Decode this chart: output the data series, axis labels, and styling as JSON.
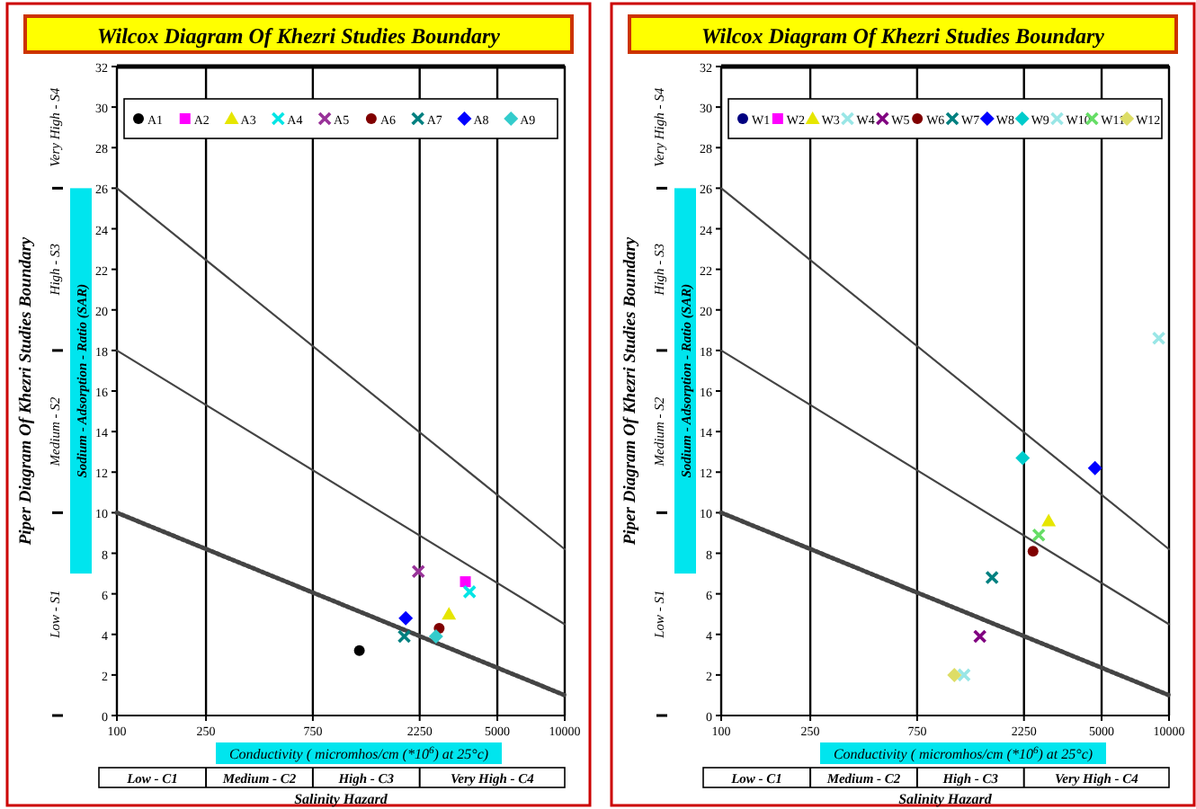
{
  "chart_data": [
    {
      "type": "scatter",
      "title": "Wilcox Diagram Of Khezri Studies Boundary",
      "xlabel": "Conductivity ( micromhos/cm (*10$^{6}$) at 25°c)",
      "ylabel": "Sodium - Adsorption - Ratio (SAR)",
      "log": "x",
      "xlim": [
        100,
        10000
      ],
      "xticks": [
        100,
        250,
        750,
        2250,
        5000,
        10000
      ],
      "ylim": [
        0,
        32
      ],
      "yticks": [
        0,
        2,
        4,
        6,
        8,
        10,
        12,
        14,
        16,
        18,
        20,
        22,
        24,
        26,
        28,
        30,
        32
      ],
      "grid": "x",
      "legend": "top",
      "annotations": [
        "Low - S1",
        "Medium - S2",
        "High - S3",
        "Very High - S4",
        "Low - C1",
        "Medium - C2",
        "High - C3",
        "Very High - C4",
        "Salinity Hazard",
        "Piper Diagram Of Khezri Studies Boundary"
      ],
      "series": [
        {
          "type": "line",
          "color": "#444444",
          "line_style": "solid",
          "x": [
            100,
            10000
          ],
          "values": [
            26,
            8.2
          ]
        },
        {
          "type": "line",
          "color": "#444444",
          "line_style": "solid",
          "x": [
            100,
            10000
          ],
          "values": [
            18,
            4.5
          ]
        },
        {
          "type": "line",
          "color": "#444444",
          "line_style": "dotted",
          "x": [
            100,
            10000
          ],
          "values": [
            10,
            1
          ]
        },
        {
          "name": "A1",
          "color": "#000000",
          "marker": "circle",
          "x": [
            1210
          ],
          "values": [
            3.2
          ]
        },
        {
          "name": "A2",
          "color": "#ff00ff",
          "marker": "square",
          "x": [
            3600
          ],
          "values": [
            6.6
          ]
        },
        {
          "name": "A3",
          "color": "#e6e600",
          "marker": "triangle",
          "x": [
            3040
          ],
          "values": [
            5
          ]
        },
        {
          "name": "A4",
          "color": "#00e5e5",
          "marker": "cross",
          "x": [
            3760
          ],
          "values": [
            6.1
          ]
        },
        {
          "name": "A5",
          "color": "#993399",
          "marker": "cross",
          "x": [
            2220
          ],
          "values": [
            7.1
          ]
        },
        {
          "name": "A6",
          "color": "#800000",
          "marker": "circle",
          "x": [
            2750
          ],
          "values": [
            4.3
          ]
        },
        {
          "name": "A7",
          "color": "#008080",
          "marker": "cross",
          "x": [
            1920
          ],
          "values": [
            3.9
          ]
        },
        {
          "name": "A8",
          "color": "#0000ff",
          "marker": "diamond",
          "x": [
            1950
          ],
          "values": [
            4.8
          ]
        },
        {
          "name": "A9",
          "color": "#33cccc",
          "marker": "diamond",
          "x": [
            2660
          ],
          "values": [
            3.9
          ]
        }
      ]
    },
    {
      "type": "scatter",
      "title": "Wilcox Diagram Of Khezri Studies Boundary",
      "xlabel": "Conductivity ( micromhos/cm (*10$^{6}$) at 25°c)",
      "ylabel": "Sodium - Adsorption - Ratio (SAR)",
      "log": "x",
      "xlim": [
        100,
        10000
      ],
      "xticks": [
        100,
        250,
        750,
        2250,
        5000,
        10000
      ],
      "ylim": [
        0,
        32
      ],
      "yticks": [
        0,
        2,
        4,
        6,
        8,
        10,
        12,
        14,
        16,
        18,
        20,
        22,
        24,
        26,
        28,
        30,
        32
      ],
      "grid": "x",
      "legend": "top",
      "annotations": [
        "Low - S1",
        "Medium - S2",
        "High - S3",
        "Very High - S4",
        "Low - C1",
        "Medium - C2",
        "High - C3",
        "Very High - C4",
        "Salinity Hazard",
        "Piper Diagram Of Khezri Studies Boundary"
      ],
      "series": [
        {
          "type": "line",
          "color": "#444444",
          "line_style": "solid",
          "x": [
            100,
            10000
          ],
          "values": [
            26,
            8.2
          ]
        },
        {
          "type": "line",
          "color": "#444444",
          "line_style": "solid",
          "x": [
            100,
            10000
          ],
          "values": [
            18,
            4.5
          ]
        },
        {
          "type": "line",
          "color": "#444444",
          "line_style": "dotted",
          "x": [
            100,
            10000
          ],
          "values": [
            10,
            1
          ]
        },
        {
          "name": "W1",
          "color": "#000080",
          "marker": "circle"
        },
        {
          "name": "W2",
          "color": "#ff00ff",
          "marker": "square"
        },
        {
          "name": "W3",
          "color": "#e6e600",
          "marker": "triangle",
          "x": [
            2900
          ],
          "values": [
            9.6
          ]
        },
        {
          "name": "W4",
          "color": "#99e6e6",
          "marker": "cross",
          "x": [
            1215
          ],
          "values": [
            2
          ]
        },
        {
          "name": "W5",
          "color": "#800080",
          "marker": "cross",
          "x": [
            1430
          ],
          "values": [
            3.9
          ]
        },
        {
          "name": "W6",
          "color": "#800000",
          "marker": "circle",
          "x": [
            2470
          ],
          "values": [
            8.1
          ]
        },
        {
          "name": "W7",
          "color": "#008080",
          "marker": "cross",
          "x": [
            1620
          ],
          "values": [
            6.8
          ]
        },
        {
          "name": "W8",
          "color": "#0000ff",
          "marker": "diamond",
          "x": [
            4670
          ],
          "values": [
            12.2
          ]
        },
        {
          "name": "W9",
          "color": "#00cccc",
          "marker": "diamond",
          "x": [
            2220
          ],
          "values": [
            12.7
          ]
        },
        {
          "name": "W10",
          "color": "#99e6e6",
          "marker": "cross",
          "x": [
            9000
          ],
          "values": [
            18.6
          ]
        },
        {
          "name": "W11",
          "color": "#66dd66",
          "marker": "cross",
          "x": [
            2620
          ],
          "values": [
            8.9
          ]
        },
        {
          "name": "W12",
          "color": "#dddd66",
          "marker": "diamond",
          "x": [
            1100
          ],
          "values": [
            2
          ]
        }
      ]
    }
  ]
}
